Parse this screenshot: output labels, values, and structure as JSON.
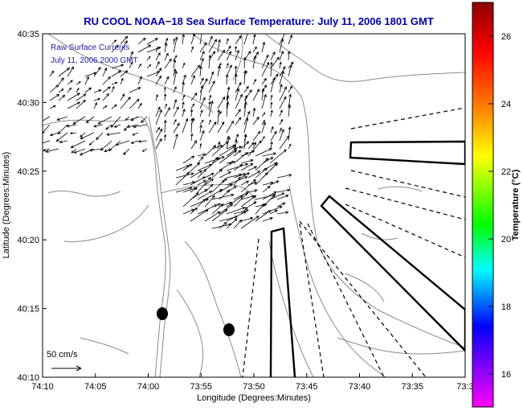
{
  "chart_data": {
    "type": "map",
    "title": "RU COOL  NOAA−18  Sea Surface Temperature:  July 11, 2006 1801 GMT",
    "xlabel": "Longitude (Degrees:Minutes)",
    "ylabel": "Latitude (Degrees:Minutes)",
    "x_ticks": [
      "74:10",
      "74:05",
      "74:00",
      "73:55",
      "73:50",
      "73:45",
      "73:40",
      "73:35",
      "73:3"
    ],
    "y_ticks": [
      "40:35",
      "40:30",
      "40:25",
      "40:20",
      "40:15",
      "40:10"
    ],
    "annotation_lines": [
      "Raw Surface Currents",
      "July 11, 2006 2000 GMT"
    ],
    "scale_label": "50 cm/s",
    "colorbar": {
      "label": "Temperature (°C)",
      "ticks": [
        "26",
        "24",
        "22",
        "20",
        "18",
        "16"
      ],
      "colors": [
        "#8b0000",
        "#ff0000",
        "#ff8000",
        "#ffff00",
        "#00ff00",
        "#00ffff",
        "#0000ff",
        "#8000ff",
        "#ff00ff"
      ]
    }
  },
  "colors": {
    "title": "#0000a8",
    "land_contour": "#888888",
    "vectors": "#000000"
  }
}
